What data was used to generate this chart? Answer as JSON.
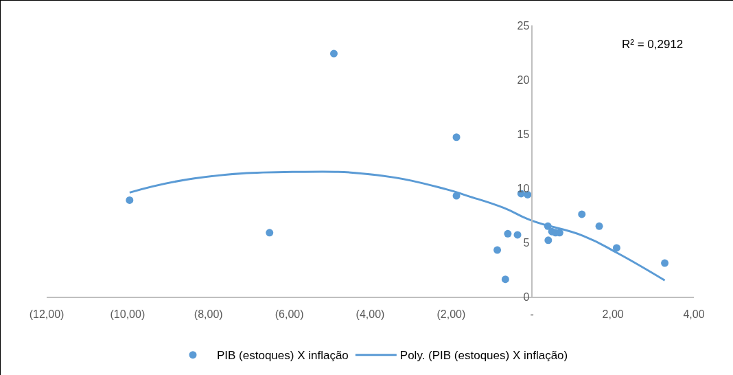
{
  "chart_data": {
    "type": "scatter",
    "xlim": [
      -12,
      4
    ],
    "xticks": [
      {
        "value": -12,
        "label": "(12,00)"
      },
      {
        "value": -10,
        "label": "(10,00)"
      },
      {
        "value": -8,
        "label": "(8,00)"
      },
      {
        "value": -6,
        "label": "(6,00)"
      },
      {
        "value": -4,
        "label": "(4,00)"
      },
      {
        "value": -2,
        "label": "(2,00)"
      },
      {
        "value": 0,
        "label": "-"
      },
      {
        "value": 2,
        "label": "2,00"
      },
      {
        "value": 4,
        "label": "4,00"
      }
    ],
    "ylim": [
      0,
      25
    ],
    "yticks": [
      0,
      5,
      10,
      15,
      20,
      25
    ],
    "grid": false,
    "legend": "bottom",
    "annotations": [
      "R² = 0,2912"
    ],
    "series": [
      {
        "name": "PIB (estoques) X inflação",
        "marker": "circle",
        "color": "#5b9bd5",
        "x": [
          -9.95,
          -6.49,
          -4.9,
          -1.87,
          -1.87,
          -0.86,
          -0.66,
          -0.6,
          -0.36,
          -0.27,
          -0.11,
          0.39,
          0.4,
          0.49,
          0.58,
          0.68,
          1.23,
          1.66,
          2.09,
          3.28
        ],
        "values": [
          8.9,
          5.9,
          22.4,
          14.7,
          9.3,
          4.3,
          1.6,
          5.8,
          5.7,
          9.5,
          9.4,
          6.5,
          5.2,
          6.0,
          5.9,
          5.9,
          7.6,
          6.5,
          4.5,
          3.1
        ]
      },
      {
        "name": "Poly. (PIB (estoques) X inflação)",
        "type": "line",
        "marker": "none",
        "color": "#5b9bd5",
        "line_style": "solid",
        "x": [
          -9.95,
          -8.35,
          -5.92,
          -3.82,
          -2.12,
          -1.6,
          -0.71,
          0,
          1.27,
          2.12,
          3.28
        ],
        "values": [
          9.6,
          10.9,
          11.5,
          11.2,
          9.9,
          9.3,
          8.2,
          7.0,
          5.6,
          4.0,
          1.5
        ]
      }
    ]
  }
}
